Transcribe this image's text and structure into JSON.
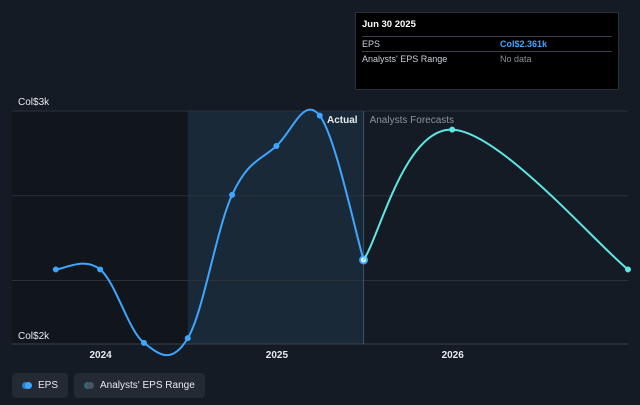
{
  "chart_data": {
    "type": "line",
    "x_range": [
      "2023-07-01",
      "2026-12-31"
    ],
    "y_range": [
      2000,
      3000
    ],
    "y_ticks": [
      "Col$3k",
      "Col$2k"
    ],
    "x_ticks": [
      {
        "date": "2024-01-01",
        "label": "2024"
      },
      {
        "date": "2025-01-01",
        "label": "2025"
      },
      {
        "date": "2026-01-01",
        "label": "2026"
      }
    ],
    "past_region_start": "2024-06-30",
    "split_date": "2025-06-30",
    "actual_label": "Actual",
    "forecast_label": "Analysts Forecasts",
    "grid": true,
    "series": [
      {
        "name": "EPS",
        "kind": "actual",
        "color": "#3ea6ff",
        "points": [
          {
            "date": "2023-09-30",
            "value": 2320
          },
          {
            "date": "2023-12-31",
            "value": 2320
          },
          {
            "date": "2024-03-31",
            "value": 2005
          },
          {
            "date": "2024-06-30",
            "value": 2025
          },
          {
            "date": "2024-09-30",
            "value": 2640
          },
          {
            "date": "2024-12-31",
            "value": 2850
          },
          {
            "date": "2025-03-31",
            "value": 2980
          },
          {
            "date": "2025-06-30",
            "value": 2361
          }
        ]
      },
      {
        "name": "EPS",
        "kind": "forecast",
        "color": "#5ee6e2",
        "points": [
          {
            "date": "2025-06-30",
            "value": 2361
          },
          {
            "date": "2025-12-31",
            "value": 2920
          },
          {
            "date": "2026-12-31",
            "value": 2320
          }
        ]
      }
    ]
  },
  "tooltip": {
    "date": "Jun 30 2025",
    "rows": [
      {
        "key": "EPS",
        "value": "Col$2.361k"
      },
      {
        "key": "Analysts' EPS Range",
        "value": "No data"
      }
    ]
  },
  "legend": {
    "items": [
      {
        "label": "EPS"
      },
      {
        "label": "Analysts' EPS Range"
      }
    ]
  }
}
